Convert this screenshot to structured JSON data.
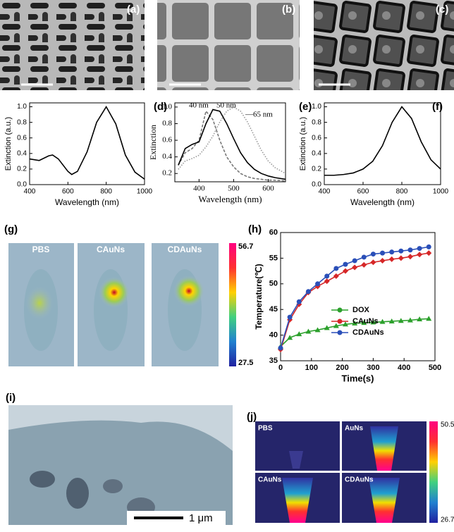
{
  "panels": {
    "a": "(a)",
    "b": "(b)",
    "c": "(c)",
    "d": "(d)",
    "e": "(e)",
    "f": "(f)",
    "g": "(g)",
    "h": "(h)",
    "i": "(i)",
    "j": "(j)"
  },
  "g": {
    "labels": [
      "PBS",
      "CAuNs",
      "CDAuNs"
    ],
    "scale_max": "56.7",
    "scale_min": "27.5"
  },
  "i": {
    "scalebar": "1 μm"
  },
  "j": {
    "labels": [
      "PBS",
      "AuNs",
      "CAuNs",
      "CDAuNs"
    ],
    "scale_max": "50.5",
    "scale_min": "26.7"
  },
  "chart_data": [
    {
      "type": "line",
      "xlabel": "Wavelength (nm)",
      "ylabel": "Extinction (a.u.)",
      "x": [
        400,
        450,
        500,
        520,
        550,
        600,
        620,
        650,
        700,
        750,
        800,
        850,
        900,
        950,
        1000
      ],
      "series": [
        {
          "color": "#000000",
          "dash": "solid",
          "values": [
            0.33,
            0.31,
            0.37,
            0.38,
            0.33,
            0.17,
            0.13,
            0.17,
            0.42,
            0.8,
            1.0,
            0.78,
            0.38,
            0.16,
            0.07
          ]
        }
      ],
      "xlim": [
        400,
        1000
      ],
      "xticks": [
        400,
        600,
        800,
        1000
      ],
      "ylim": [
        0,
        1.05
      ],
      "yticks": [
        {
          "value": 0,
          "label": "0.0"
        },
        0.2,
        0.4,
        0.6,
        0.8,
        {
          "value": 1,
          "label": "1.0"
        }
      ]
    },
    {
      "type": "line",
      "xlabel": "Wavelength (nm)",
      "ylabel": "Extinction",
      "x": [
        340,
        360,
        380,
        400,
        420,
        440,
        460,
        480,
        500,
        520,
        540,
        560,
        580,
        600,
        620,
        650
      ],
      "series": [
        {
          "name": "40 nm",
          "color": "#777777",
          "dash": "dashed",
          "values": [
            0.3,
            0.45,
            0.5,
            0.6,
            0.95,
            0.85,
            0.6,
            0.4,
            0.28,
            0.2,
            0.16,
            0.14,
            0.13,
            0.12,
            0.12,
            0.11
          ]
        },
        {
          "name": "50 nm",
          "color": "#000000",
          "dash": "solid",
          "values": [
            0.3,
            0.5,
            0.55,
            0.58,
            0.8,
            0.97,
            0.95,
            0.8,
            0.62,
            0.45,
            0.33,
            0.25,
            0.2,
            0.17,
            0.15,
            0.13
          ]
        },
        {
          "name": "65 nm",
          "color": "#999999",
          "dash": "dotted",
          "values": [
            0.25,
            0.35,
            0.38,
            0.42,
            0.52,
            0.65,
            0.82,
            0.95,
            1.0,
            0.95,
            0.82,
            0.65,
            0.48,
            0.35,
            0.27,
            0.2
          ]
        }
      ],
      "annotations": [
        "40 nm",
        "50 nm",
        "—65 nm"
      ],
      "xlim": [
        330,
        650
      ],
      "xticks": [
        400,
        500,
        600
      ],
      "ylim": [
        0.1,
        1.05
      ],
      "yticks": [
        0.2,
        0.4,
        0.6,
        0.8,
        {
          "value": 1,
          "label": "1.0"
        }
      ]
    },
    {
      "type": "line",
      "xlabel": "Wavelength (nm)",
      "ylabel": "Extinction (a.u.)",
      "x": [
        400,
        450,
        500,
        550,
        600,
        650,
        700,
        750,
        800,
        850,
        900,
        950,
        1000
      ],
      "series": [
        {
          "color": "#000000",
          "dash": "solid",
          "values": [
            0.12,
            0.12,
            0.13,
            0.15,
            0.2,
            0.3,
            0.5,
            0.8,
            1.0,
            0.85,
            0.55,
            0.32,
            0.2
          ]
        }
      ],
      "xlim": [
        400,
        1000
      ],
      "xticks": [
        400,
        600,
        800,
        1000
      ],
      "ylim": [
        0,
        1.05
      ],
      "yticks": [
        {
          "value": 0,
          "label": "0.0"
        },
        0.2,
        0.4,
        0.6,
        0.8,
        {
          "value": 1,
          "label": "1.0"
        }
      ]
    },
    {
      "type": "line",
      "xlabel": "Time(s)",
      "ylabel": "Temperature(℃)",
      "x": [
        0,
        30,
        60,
        90,
        120,
        150,
        180,
        210,
        240,
        270,
        300,
        330,
        360,
        390,
        420,
        450,
        480
      ],
      "series": [
        {
          "name": "DOX",
          "color": "#2ca02c",
          "marker": "triangle",
          "values": [
            37.8,
            39.5,
            40.2,
            40.7,
            41,
            41.4,
            41.8,
            42.1,
            42.3,
            42.4,
            42.5,
            42.6,
            42.7,
            42.8,
            42.9,
            43.1,
            43.2
          ]
        },
        {
          "name": "CAuNs",
          "color": "#d62728",
          "marker": "diamond",
          "values": [
            37.2,
            43,
            46,
            48.3,
            49.5,
            50.5,
            51.5,
            52.5,
            53.2,
            53.7,
            54.2,
            54.5,
            54.8,
            55,
            55.3,
            55.7,
            56
          ]
        },
        {
          "name": "CDAuNs",
          "color": "#2a4fb8",
          "marker": "circle",
          "values": [
            37.5,
            43.5,
            46.5,
            48.5,
            50,
            51.5,
            53,
            53.8,
            54.5,
            55.2,
            55.8,
            56,
            56.2,
            56.4,
            56.6,
            56.9,
            57.2
          ]
        }
      ],
      "xlim": [
        0,
        500
      ],
      "xticks": [
        0,
        100,
        200,
        300,
        400,
        500
      ],
      "ylim": [
        35,
        60
      ],
      "yticks": [
        35,
        40,
        45,
        50,
        55,
        60
      ]
    }
  ]
}
